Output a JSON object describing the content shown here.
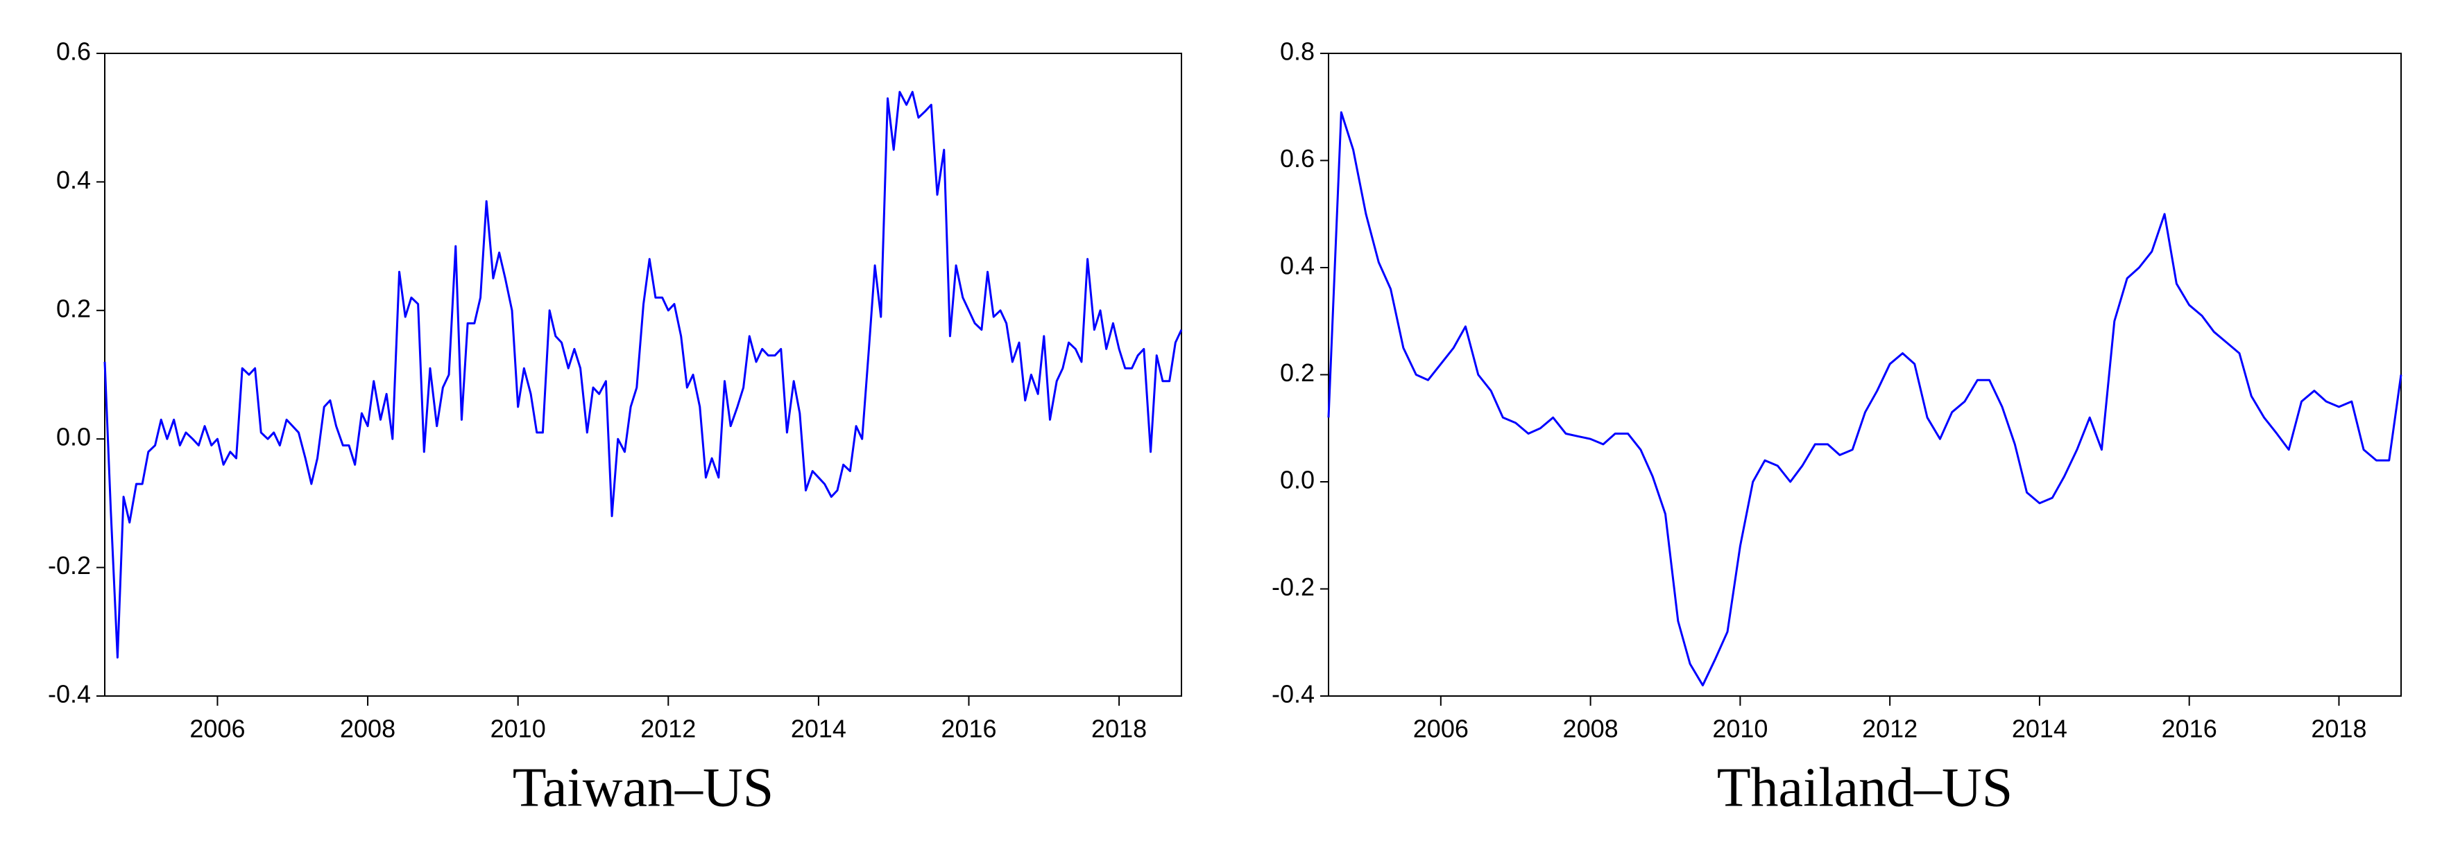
{
  "chart_data": [
    {
      "type": "line",
      "title": "Taiwan–US",
      "color": "#0000ff",
      "xlim": [
        2004.5,
        2018.83
      ],
      "xticks": [
        2006,
        2008,
        2010,
        2012,
        2014,
        2016,
        2018
      ],
      "ylim": [
        -0.4,
        0.6
      ],
      "yticks": [
        -0.4,
        -0.2,
        {
          "value": 0,
          "label": "0.0"
        },
        0.2,
        0.4,
        0.6
      ],
      "x": [
        2004.5,
        2004.58,
        2004.67,
        2004.75,
        2004.83,
        2004.92,
        2005,
        2005.08,
        2005.17,
        2005.25,
        2005.33,
        2005.42,
        2005.5,
        2005.58,
        2005.67,
        2005.75,
        2005.83,
        2005.92,
        2006,
        2006.08,
        2006.17,
        2006.25,
        2006.33,
        2006.42,
        2006.5,
        2006.58,
        2006.67,
        2006.75,
        2006.83,
        2006.92,
        2007,
        2007.08,
        2007.17,
        2007.25,
        2007.33,
        2007.42,
        2007.5,
        2007.58,
        2007.67,
        2007.75,
        2007.83,
        2007.92,
        2008,
        2008.08,
        2008.17,
        2008.25,
        2008.33,
        2008.42,
        2008.5,
        2008.58,
        2008.67,
        2008.75,
        2008.83,
        2008.92,
        2009,
        2009.08,
        2009.17,
        2009.25,
        2009.33,
        2009.42,
        2009.5,
        2009.58,
        2009.67,
        2009.75,
        2009.83,
        2009.92,
        2010,
        2010.08,
        2010.17,
        2010.25,
        2010.33,
        2010.42,
        2010.5,
        2010.58,
        2010.67,
        2010.75,
        2010.83,
        2010.92,
        2011,
        2011.08,
        2011.17,
        2011.25,
        2011.33,
        2011.42,
        2011.5,
        2011.58,
        2011.67,
        2011.75,
        2011.83,
        2011.92,
        2012,
        2012.08,
        2012.17,
        2012.25,
        2012.33,
        2012.42,
        2012.5,
        2012.58,
        2012.67,
        2012.75,
        2012.83,
        2012.92,
        2013,
        2013.08,
        2013.17,
        2013.25,
        2013.33,
        2013.42,
        2013.5,
        2013.58,
        2013.67,
        2013.75,
        2013.83,
        2013.92,
        2014,
        2014.08,
        2014.17,
        2014.25,
        2014.33,
        2014.42,
        2014.5,
        2014.58,
        2014.67,
        2014.75,
        2014.83,
        2014.92,
        2015,
        2015.08,
        2015.17,
        2015.25,
        2015.33,
        2015.42,
        2015.5,
        2015.58,
        2015.67,
        2015.75,
        2015.83,
        2015.92,
        2016,
        2016.08,
        2016.17,
        2016.25,
        2016.33,
        2016.42,
        2016.5,
        2016.58,
        2016.67,
        2016.75,
        2016.83,
        2016.92,
        2017,
        2017.08,
        2017.17,
        2017.25,
        2017.33,
        2017.42,
        2017.5,
        2017.58,
        2017.67,
        2017.75,
        2017.83,
        2017.92,
        2018,
        2018.08,
        2018.17,
        2018.25,
        2018.33,
        2018.42,
        2018.5,
        2018.58,
        2018.67,
        2018.75,
        2018.83
      ],
      "values": [
        0.12,
        -0.11,
        -0.34,
        -0.09,
        -0.13,
        -0.07,
        -0.07,
        -0.02,
        -0.01,
        0.03,
        0.0,
        0.03,
        -0.01,
        0.01,
        0.0,
        -0.01,
        0.02,
        -0.01,
        0.0,
        -0.04,
        -0.02,
        -0.03,
        0.11,
        0.1,
        0.11,
        0.01,
        0.0,
        0.01,
        -0.01,
        0.03,
        0.02,
        0.01,
        -0.03,
        -0.07,
        -0.03,
        0.05,
        0.06,
        0.02,
        -0.01,
        -0.01,
        -0.04,
        0.04,
        0.02,
        0.09,
        0.03,
        0.07,
        0.0,
        0.26,
        0.19,
        0.22,
        0.21,
        -0.02,
        0.11,
        0.02,
        0.08,
        0.1,
        0.3,
        0.03,
        0.18,
        0.18,
        0.22,
        0.37,
        0.25,
        0.29,
        0.25,
        0.2,
        0.05,
        0.11,
        0.07,
        0.01,
        0.01,
        0.2,
        0.16,
        0.15,
        0.11,
        0.14,
        0.11,
        0.01,
        0.08,
        0.07,
        0.09,
        -0.12,
        0.0,
        -0.02,
        0.05,
        0.08,
        0.21,
        0.28,
        0.22,
        0.22,
        0.2,
        0.21,
        0.16,
        0.08,
        0.1,
        0.05,
        -0.06,
        -0.03,
        -0.06,
        0.09,
        0.02,
        0.05,
        0.08,
        0.16,
        0.12,
        0.14,
        0.13,
        0.13,
        0.14,
        0.01,
        0.09,
        0.04,
        -0.08,
        -0.05,
        -0.06,
        -0.07,
        -0.09,
        -0.08,
        -0.04,
        -0.05,
        0.02,
        0.0,
        0.14,
        0.27,
        0.19,
        0.53,
        0.45,
        0.54,
        0.52,
        0.54,
        0.5,
        0.51,
        0.52,
        0.38,
        0.45,
        0.16,
        0.27,
        0.22,
        0.2,
        0.18,
        0.17,
        0.26,
        0.19,
        0.2,
        0.18,
        0.12,
        0.15,
        0.06,
        0.1,
        0.07,
        0.16,
        0.03,
        0.09,
        0.11,
        0.15,
        0.14,
        0.12,
        0.28,
        0.17,
        0.2,
        0.14,
        0.18,
        0.14,
        0.11,
        0.11,
        0.13,
        0.14,
        -0.02,
        0.13,
        0.09,
        0.09,
        0.15,
        0.17
      ]
    },
    {
      "type": "line",
      "title": "Thailand–US",
      "color": "#0000ff",
      "xlim": [
        2004.5,
        2018.83
      ],
      "xticks": [
        2006,
        2008,
        2010,
        2012,
        2014,
        2016,
        2018
      ],
      "ylim": [
        -0.4,
        0.8
      ],
      "yticks": [
        -0.4,
        -0.2,
        {
          "value": 0,
          "label": "0.0"
        },
        0.2,
        0.4,
        0.6,
        0.8
      ],
      "x": [
        2004.5,
        2004.67,
        2004.83,
        2005,
        2005.17,
        2005.33,
        2005.5,
        2005.67,
        2005.83,
        2006,
        2006.17,
        2006.33,
        2006.5,
        2006.67,
        2006.83,
        2007,
        2007.17,
        2007.33,
        2007.5,
        2007.67,
        2007.83,
        2008,
        2008.17,
        2008.33,
        2008.5,
        2008.67,
        2008.83,
        2009,
        2009.17,
        2009.33,
        2009.5,
        2009.67,
        2009.83,
        2010,
        2010.17,
        2010.33,
        2010.5,
        2010.67,
        2010.83,
        2011,
        2011.17,
        2011.33,
        2011.5,
        2011.67,
        2011.83,
        2012,
        2012.17,
        2012.33,
        2012.5,
        2012.67,
        2012.83,
        2013,
        2013.17,
        2013.33,
        2013.5,
        2013.67,
        2013.83,
        2014,
        2014.17,
        2014.33,
        2014.5,
        2014.67,
        2014.83,
        2015,
        2015.17,
        2015.33,
        2015.5,
        2015.67,
        2015.83,
        2016,
        2016.17,
        2016.33,
        2016.5,
        2016.67,
        2016.83,
        2017,
        2017.17,
        2017.33,
        2017.5,
        2017.67,
        2017.83,
        2018,
        2018.17,
        2018.33,
        2018.5,
        2018.67,
        2018.83
      ],
      "values": [
        0.12,
        0.69,
        0.62,
        0.5,
        0.41,
        0.36,
        0.25,
        0.2,
        0.19,
        0.22,
        0.25,
        0.29,
        0.2,
        0.17,
        0.12,
        0.11,
        0.09,
        0.1,
        0.12,
        0.09,
        0.085,
        0.08,
        0.07,
        0.09,
        0.09,
        0.06,
        0.01,
        -0.06,
        -0.26,
        -0.34,
        -0.38,
        -0.33,
        -0.28,
        -0.12,
        0.0,
        0.04,
        0.03,
        0.0,
        0.03,
        0.07,
        0.07,
        0.05,
        0.06,
        0.13,
        0.17,
        0.22,
        0.24,
        0.22,
        0.12,
        0.08,
        0.13,
        0.15,
        0.19,
        0.19,
        0.14,
        0.07,
        -0.02,
        -0.04,
        -0.03,
        0.01,
        0.06,
        0.12,
        0.06,
        0.3,
        0.38,
        0.4,
        0.43,
        0.5,
        0.37,
        0.33,
        0.31,
        0.28,
        0.26,
        0.24,
        0.16,
        0.12,
        0.09,
        0.06,
        0.15,
        0.17,
        0.15,
        0.14,
        0.15,
        0.06,
        0.04,
        0.04,
        0.2
      ]
    }
  ]
}
